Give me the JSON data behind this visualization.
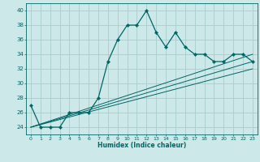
{
  "xlabel": "Humidex (Indice chaleur)",
  "background_color": "#cce8e8",
  "grid_color": "#aacccc",
  "line_color": "#006666",
  "xlim": [
    -0.5,
    23.5
  ],
  "ylim": [
    23,
    41
  ],
  "yticks": [
    24,
    26,
    28,
    30,
    32,
    34,
    36,
    38,
    40
  ],
  "xticks": [
    0,
    1,
    2,
    3,
    4,
    5,
    6,
    7,
    8,
    9,
    10,
    11,
    12,
    13,
    14,
    15,
    16,
    17,
    18,
    19,
    20,
    21,
    22,
    23
  ],
  "main_x": [
    0,
    1,
    2,
    3,
    4,
    5,
    6,
    7,
    8,
    9,
    10,
    11,
    12,
    13,
    14,
    15,
    16,
    17,
    18,
    19,
    20,
    21,
    22,
    23
  ],
  "main_y": [
    27,
    24,
    24,
    24,
    26,
    26,
    26,
    28,
    33,
    36,
    38,
    38,
    40,
    37,
    35,
    37,
    35,
    34,
    34,
    33,
    33,
    34,
    34,
    33
  ],
  "line1_x": [
    0,
    23
  ],
  "line1_y": [
    24,
    33
  ],
  "line2_x": [
    0,
    23
  ],
  "line2_y": [
    24,
    32
  ],
  "line3_x": [
    0,
    23
  ],
  "line3_y": [
    24,
    34
  ]
}
